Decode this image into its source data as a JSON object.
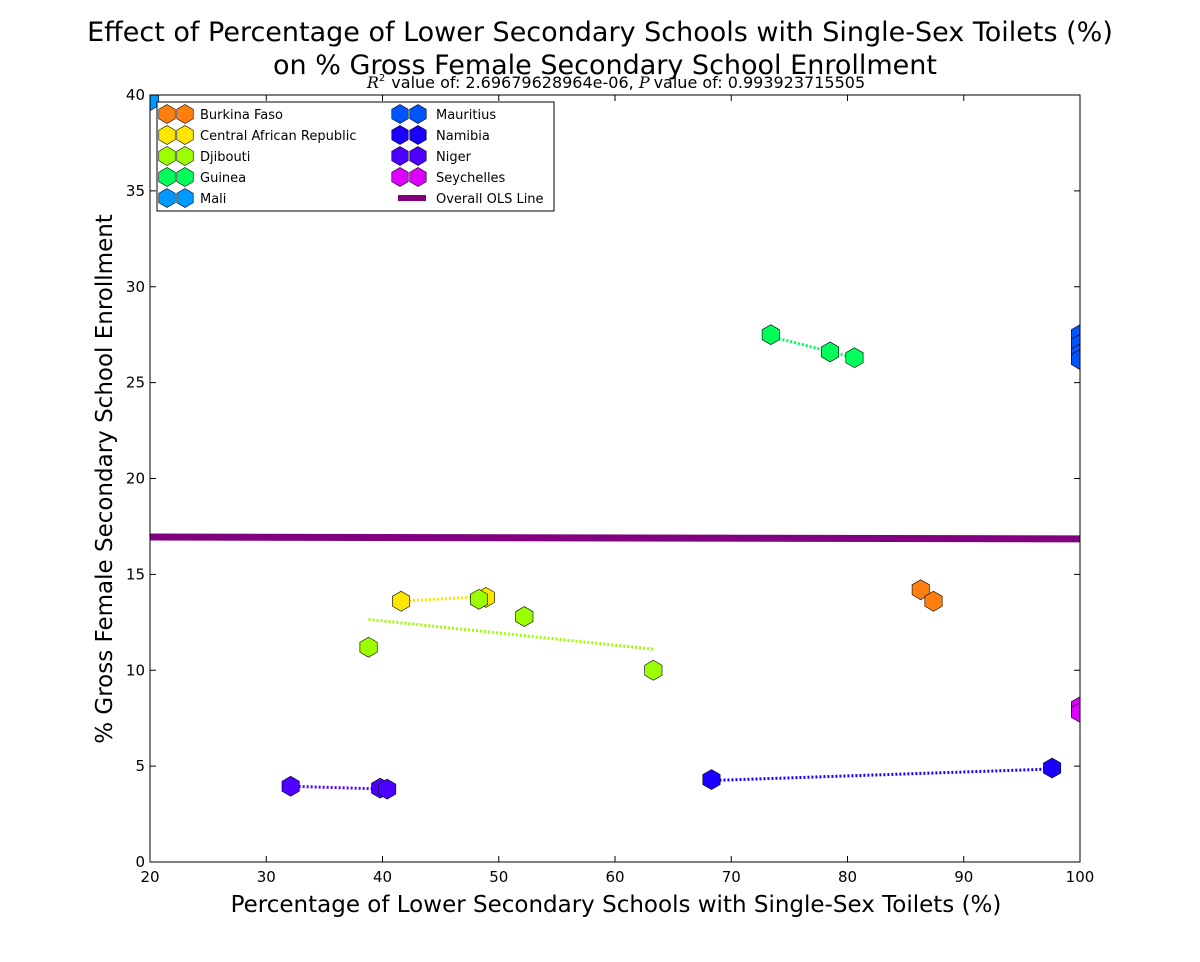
{
  "chart_data": {
    "type": "scatter",
    "title_line1": "Effect of Percentage of Lower Secondary Schools with Single-Sex Toilets (%)",
    "title_line2": "on % Gross Female Secondary School Enrollment",
    "subtitle": {
      "r2_symbol": "R",
      "r2_sup": "2",
      "r2_text": "value of: 2.69679628964e-06, ",
      "p_symbol": "P",
      "p_text": "value of: 0.993923715505"
    },
    "xlabel": "Percentage of Lower Secondary Schools with Single-Sex Toilets (%)",
    "ylabel": "% Gross Female Secondary School Enrollment",
    "xlim": [
      20,
      100
    ],
    "ylim": [
      0,
      40
    ],
    "xticks": [
      20,
      30,
      40,
      50,
      60,
      70,
      80,
      90,
      100
    ],
    "yticks": [
      0,
      5,
      10,
      15,
      20,
      25,
      30,
      35,
      40
    ],
    "legend_position": "top-left",
    "series": [
      {
        "name": "Burkina Faso",
        "color": "#ff7f0e",
        "marker": "hexagon",
        "points": [
          [
            86.3,
            14.2
          ],
          [
            87.4,
            13.6
          ]
        ],
        "fit": null
      },
      {
        "name": "Central African Republic",
        "color": "#ffe600",
        "marker": "hexagon",
        "points": [
          [
            41.6,
            13.6
          ],
          [
            48.9,
            13.8
          ]
        ],
        "fit": [
          [
            41.6,
            13.6
          ],
          [
            48.9,
            13.85
          ]
        ]
      },
      {
        "name": "Djibouti",
        "color": "#9bff00",
        "marker": "hexagon",
        "points": [
          [
            38.8,
            11.2
          ],
          [
            48.3,
            13.7
          ],
          [
            52.2,
            12.8
          ],
          [
            63.3,
            10.0
          ]
        ],
        "fit": [
          [
            38.8,
            12.65
          ],
          [
            63.3,
            11.1
          ]
        ]
      },
      {
        "name": "Guinea",
        "color": "#00ff5a",
        "marker": "hexagon",
        "points": [
          [
            73.4,
            27.5
          ],
          [
            78.5,
            26.6
          ],
          [
            80.6,
            26.3
          ]
        ],
        "fit": [
          [
            73.4,
            27.4
          ],
          [
            80.6,
            26.3
          ]
        ]
      },
      {
        "name": "Mali",
        "color": "#0099ff",
        "marker": "hexagon",
        "points": [
          [
            20.0,
            39.7
          ]
        ],
        "fit": null
      },
      {
        "name": "Mauritius",
        "color": "#0055ff",
        "marker": "hexagon",
        "points": [
          [
            100.0,
            27.5
          ],
          [
            100.0,
            27.0
          ],
          [
            100.0,
            26.5
          ],
          [
            100.0,
            26.2
          ]
        ],
        "fit": null
      },
      {
        "name": "Namibia",
        "color": "#1a00ff",
        "marker": "hexagon",
        "points": [
          [
            68.3,
            4.3
          ],
          [
            97.6,
            4.9
          ]
        ],
        "fit": [
          [
            68.3,
            4.25
          ],
          [
            97.6,
            4.85
          ]
        ]
      },
      {
        "name": "Niger",
        "color": "#4d00ff",
        "marker": "hexagon",
        "points": [
          [
            32.1,
            3.95
          ],
          [
            39.8,
            3.85
          ],
          [
            40.4,
            3.8
          ]
        ],
        "fit": [
          [
            32.1,
            3.95
          ],
          [
            40.4,
            3.8
          ]
        ]
      },
      {
        "name": "Seychelles",
        "color": "#dd00ff",
        "marker": "hexagon",
        "points": [
          [
            100.0,
            8.1
          ],
          [
            100.0,
            7.8
          ]
        ],
        "fit": null
      }
    ],
    "ols_line": {
      "name": "Overall OLS Line",
      "color": "#800080",
      "points": [
        [
          20,
          16.95
        ],
        [
          100,
          16.85
        ]
      ]
    }
  }
}
